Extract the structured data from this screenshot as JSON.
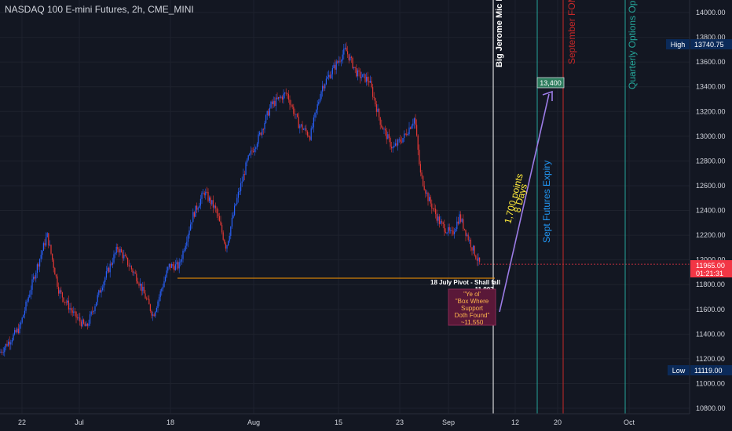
{
  "header": {
    "title": "NASDAQ 100 E-mini Futures, 2h, CME_MINI"
  },
  "colors": {
    "background": "#131722",
    "grid": "#1e222d",
    "up": "#2962ff",
    "down": "#e53935",
    "current_price": "#f23645",
    "high_low_box": "#0b2a59",
    "pivot_line": "#ff9800",
    "projection": "#9c7ce6",
    "text": "#d1d4dc"
  },
  "price_axis": {
    "ticks": [
      "14000.00",
      "13800.00",
      "13600.00",
      "13400.00",
      "13200.00",
      "13000.00",
      "12800.00",
      "12600.00",
      "12400.00",
      "12200.00",
      "12000.00",
      "11800.00",
      "11600.00",
      "11400.00",
      "11200.00",
      "11000.00",
      "10800.00"
    ],
    "current_price": "11965.00",
    "countdown": "01:21:31",
    "high_label": "High",
    "high_value": "13740.75",
    "low_label": "Low",
    "low_value": "11119.00"
  },
  "time_axis": {
    "ticks": [
      "22",
      "Jul",
      "18",
      "Aug",
      "15",
      "23",
      "Sep",
      "12",
      "20",
      "Oct"
    ]
  },
  "annotations": {
    "vline_white": "Big Jerome Mic Drop",
    "vline_teal": "Sept Futures Expiry",
    "vline_red": "September FOMC",
    "vline_green": "Quarterly Options OpEx",
    "target_label": "13,400",
    "move_label": [
      "1,700 points",
      "8 Days"
    ],
    "pivot_label": [
      "18 July Pivot - Shall fall",
      "~11,907"
    ],
    "box_label": [
      "\"Ye ol'",
      "\"Box Where",
      "Support",
      "Doth Found\"",
      "~11,550"
    ]
  }
}
